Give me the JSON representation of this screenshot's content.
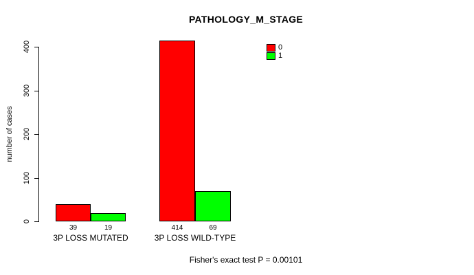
{
  "chart_data": {
    "type": "bar",
    "title": "PATHOLOGY_M_STAGE",
    "xlabel": "",
    "ylabel": "number of cases",
    "ylim": [
      0,
      400
    ],
    "yticks": [
      0,
      100,
      200,
      300,
      400
    ],
    "categories": [
      "3P LOSS MUTATED",
      "3P LOSS WILD-TYPE"
    ],
    "series": [
      {
        "name": "0",
        "color": "#FF0000",
        "values": [
          39,
          414
        ]
      },
      {
        "name": "1",
        "color": "#00FF00",
        "values": [
          19,
          69
        ]
      }
    ],
    "bar_value_labels": [
      [
        "39",
        "414"
      ],
      [
        "19",
        "69"
      ]
    ],
    "legend_position": "top-right",
    "grid": false,
    "annotation": "Fisher's exact test P = 0.00101",
    "background_color": "#FFFFFF",
    "axis_color": "#000000"
  }
}
